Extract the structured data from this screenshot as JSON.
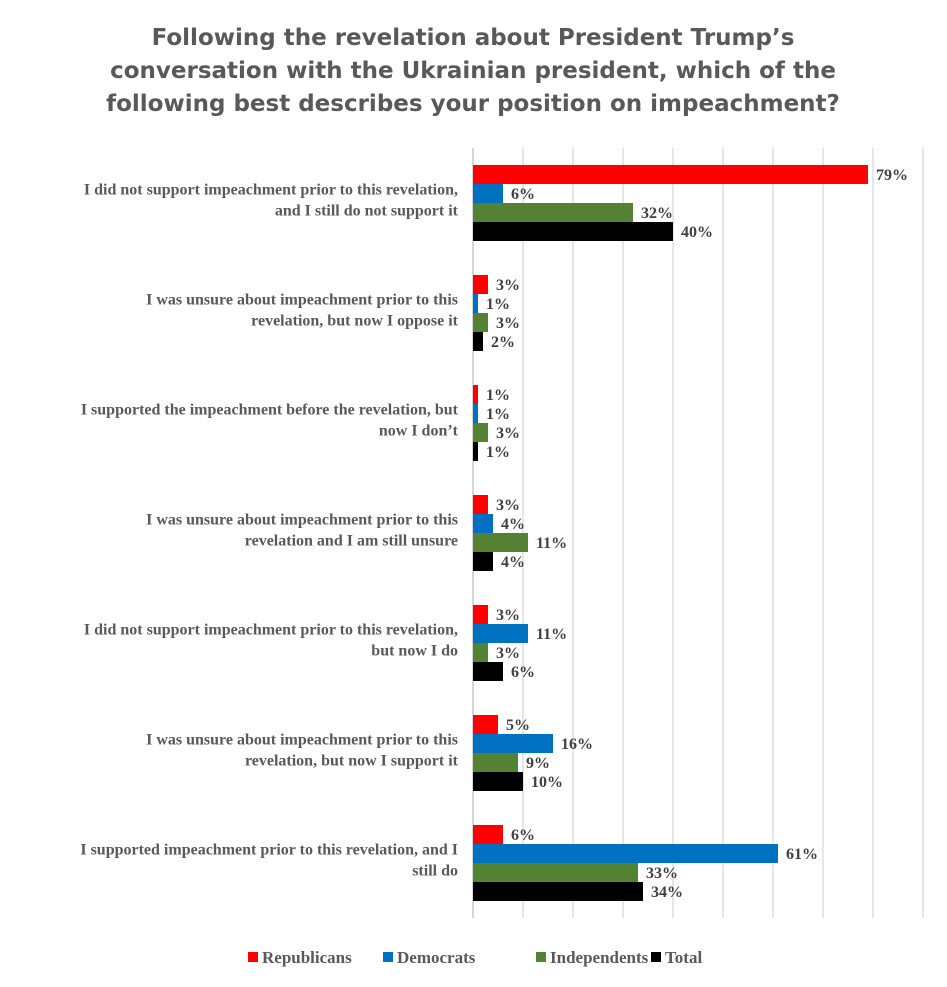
{
  "chart_data": {
    "type": "bar",
    "orientation": "horizontal",
    "title": "Following the revelation about President Trump’s conversation with the Ukrainian president, which of the following best describes your position on impeachment?",
    "title_lines": [
      "Following the revelation about President Trump’s",
      "conversation with the Ukrainian president, which of the",
      "following best describes your position on impeachment?"
    ],
    "categories": [
      [
        "I did not support impeachment prior to this revelation,",
        "and I still do not support it"
      ],
      [
        "I was unsure about impeachment prior to this",
        "revelation, but now I oppose it"
      ],
      [
        "I supported the impeachment before the revelation, but",
        "now I don’t"
      ],
      [
        "I was unsure about impeachment prior to this",
        "revelation and I am still unsure"
      ],
      [
        "I did not support impeachment prior to this revelation,",
        "but now I do"
      ],
      [
        "I was unsure about impeachment prior to this",
        "revelation, but now I support it"
      ],
      [
        "I supported impeachment prior to this revelation, and I",
        "still do"
      ]
    ],
    "series": [
      {
        "name": "Republicans",
        "color": "#FF0000",
        "values": [
          79,
          3,
          1,
          3,
          3,
          5,
          6
        ]
      },
      {
        "name": "Democrats",
        "color": "#0070C0",
        "values": [
          6,
          1,
          1,
          4,
          11,
          16,
          61
        ]
      },
      {
        "name": "Independents",
        "color": "#548235",
        "values": [
          32,
          3,
          3,
          11,
          3,
          9,
          33
        ]
      },
      {
        "name": "Total",
        "color": "#000000",
        "values": [
          40,
          2,
          1,
          4,
          6,
          10,
          34
        ]
      }
    ],
    "value_suffix": "%",
    "xlim": [
      0,
      90
    ],
    "grid": true,
    "legend": "bottom"
  }
}
